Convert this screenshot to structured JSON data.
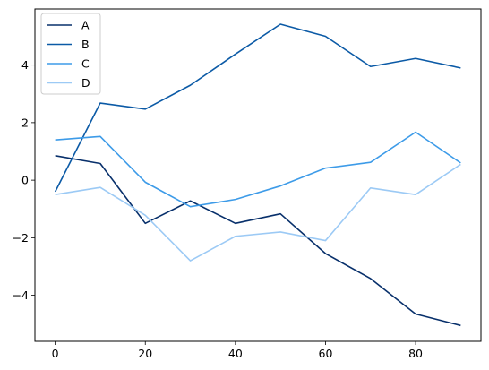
{
  "chart_data": {
    "type": "line",
    "x": [
      0,
      10,
      20,
      30,
      40,
      50,
      60,
      70,
      80,
      90
    ],
    "series": [
      {
        "name": "A",
        "color": "#08306b",
        "values": [
          0.85,
          0.58,
          -1.5,
          -0.72,
          -1.5,
          -1.17,
          -2.55,
          -3.42,
          -4.65,
          -5.05
        ]
      },
      {
        "name": "B",
        "color": "#0b5aa6",
        "values": [
          -0.4,
          2.68,
          2.47,
          3.3,
          4.38,
          5.42,
          5.0,
          3.95,
          4.23,
          3.9
        ]
      },
      {
        "name": "C",
        "color": "#3d9be8",
        "values": [
          1.4,
          1.52,
          -0.07,
          -0.92,
          -0.67,
          -0.2,
          0.42,
          0.62,
          1.67,
          0.6
        ]
      },
      {
        "name": "D",
        "color": "#9ccaf5",
        "values": [
          -0.5,
          -0.25,
          -1.22,
          -2.8,
          -1.95,
          -1.8,
          -2.1,
          -0.27,
          -0.5,
          0.55
        ]
      }
    ],
    "xticks": [
      0,
      20,
      40,
      60,
      80
    ],
    "yticks": [
      -4,
      -2,
      0,
      2,
      4
    ],
    "xlim": [
      -4.5,
      94.5
    ],
    "ylim": [
      -5.6,
      5.95
    ],
    "legend_position": "upper-left",
    "grid": false
  }
}
